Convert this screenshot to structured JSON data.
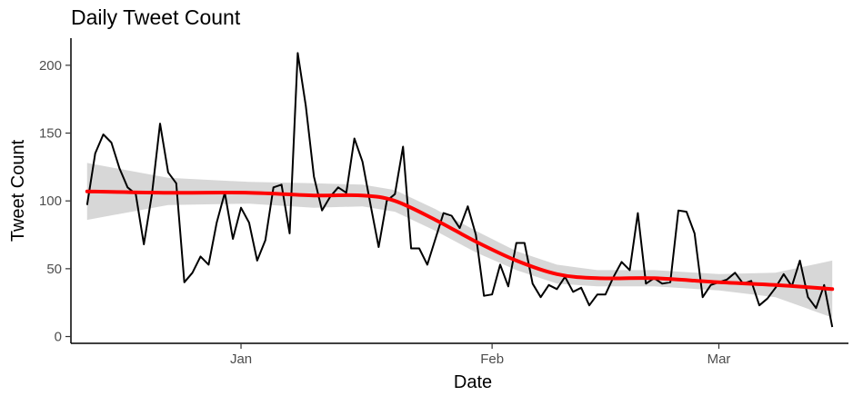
{
  "chart_data": {
    "type": "line",
    "title": "Daily Tweet Count",
    "xlabel": "Date",
    "ylabel": "Tweet Count",
    "x_start": "2018-12-13",
    "ylim": [
      -5,
      220
    ],
    "xlim": [
      "2018-12-11",
      "2019-03-17"
    ],
    "y_ticks": [
      0,
      50,
      100,
      150,
      200
    ],
    "x_ticks": [
      {
        "date": "2019-01-01",
        "label": "Jan"
      },
      {
        "date": "2019-02-01",
        "label": "Feb"
      },
      {
        "date": "2019-03-01",
        "label": "Mar"
      }
    ],
    "grid": false,
    "series": [
      {
        "values": [
          97,
          135,
          149,
          143,
          124,
          110,
          105,
          68,
          105,
          157,
          121,
          113,
          40,
          47,
          59,
          53,
          84,
          106,
          72,
          95,
          84,
          56,
          71,
          110,
          112,
          76,
          209,
          170,
          118,
          93,
          103,
          110,
          106,
          146,
          129,
          97,
          66,
          100,
          105,
          140,
          65,
          65,
          53,
          72,
          91,
          89,
          80,
          96,
          75,
          30,
          31,
          53,
          37,
          69,
          69,
          39,
          29,
          38,
          35,
          44,
          33,
          36,
          23,
          31,
          31,
          44,
          55,
          49,
          91,
          39,
          43,
          39,
          40,
          93,
          92,
          76,
          29,
          38,
          40,
          42,
          47,
          39,
          41,
          23,
          28,
          36,
          46,
          37,
          56,
          29,
          21,
          38,
          7
        ]
      }
    ],
    "smooth": {
      "color": "#ff0000",
      "band_color": "#bdbdbd",
      "points": [
        {
          "x": 0,
          "y": 107,
          "lo": 86,
          "hi": 128
        },
        {
          "x": 10,
          "y": 106,
          "lo": 97,
          "hi": 117
        },
        {
          "x": 20,
          "y": 106,
          "lo": 98,
          "hi": 114
        },
        {
          "x": 28,
          "y": 104,
          "lo": 95,
          "hi": 113
        },
        {
          "x": 34,
          "y": 104,
          "lo": 96,
          "hi": 112
        },
        {
          "x": 38,
          "y": 100,
          "lo": 92,
          "hi": 108
        },
        {
          "x": 43,
          "y": 86,
          "lo": 78,
          "hi": 94
        },
        {
          "x": 48,
          "y": 70,
          "lo": 62,
          "hi": 78
        },
        {
          "x": 53,
          "y": 56,
          "lo": 49,
          "hi": 63
        },
        {
          "x": 58,
          "y": 46,
          "lo": 39,
          "hi": 53
        },
        {
          "x": 63,
          "y": 43,
          "lo": 37,
          "hi": 49
        },
        {
          "x": 70,
          "y": 43,
          "lo": 37,
          "hi": 49
        },
        {
          "x": 78,
          "y": 40,
          "lo": 34,
          "hi": 46
        },
        {
          "x": 85,
          "y": 38,
          "lo": 29,
          "hi": 47
        },
        {
          "x": 92,
          "y": 35,
          "lo": 14,
          "hi": 56
        }
      ]
    }
  }
}
